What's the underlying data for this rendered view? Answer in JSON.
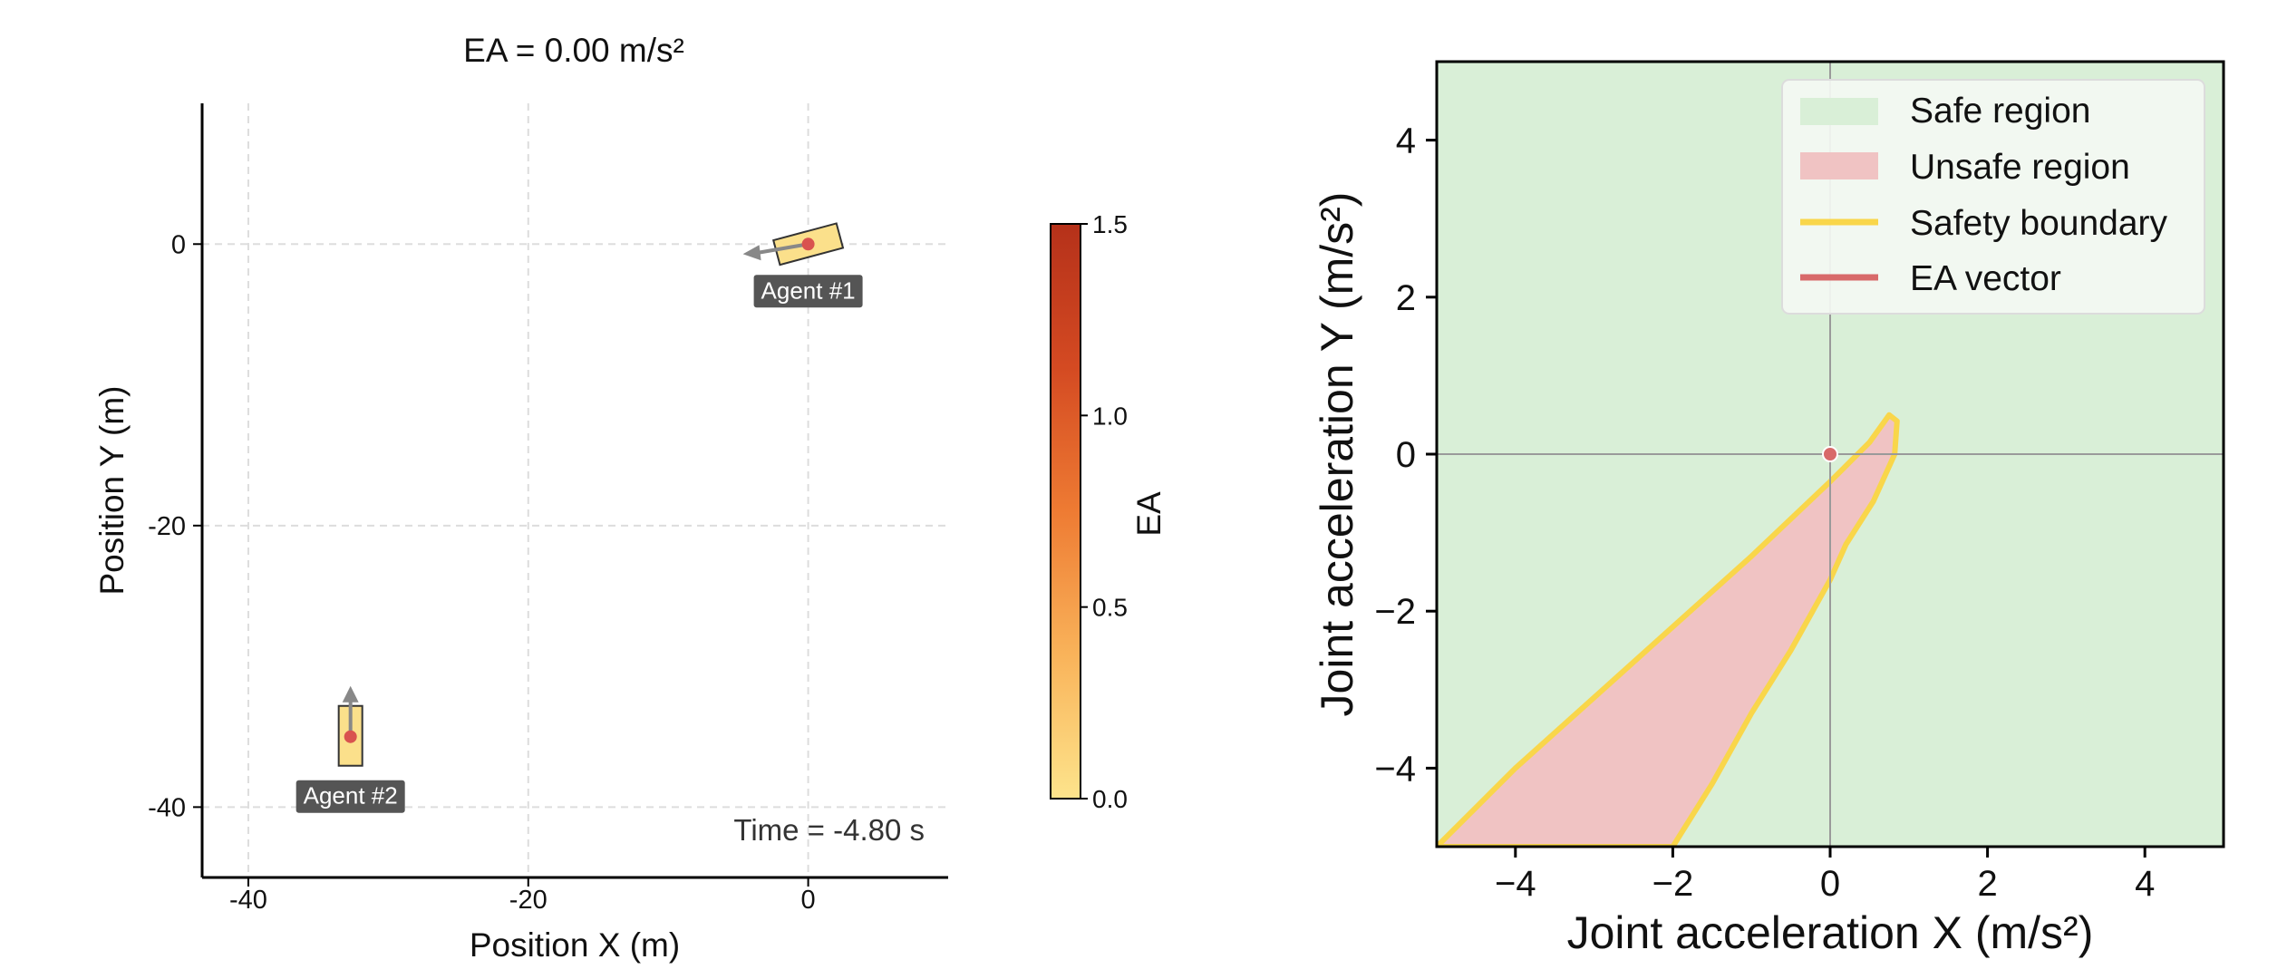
{
  "chart_data": [
    {
      "type": "scatter",
      "title": "EA = 0.00 m/s²",
      "xlabel": "Position X (m)",
      "ylabel": "Position Y (m)",
      "xlim": [
        -43.3,
        10
      ],
      "ylim": [
        -45,
        10
      ],
      "xticks": [
        -40,
        -20,
        0
      ],
      "yticks": [
        0,
        -20,
        -40
      ],
      "grid": true,
      "annotation": "Time = -4.80 s",
      "agents": [
        {
          "label": "Agent #1",
          "x": 0.0,
          "y": 0.0,
          "heading_deg": 195,
          "color": "#fbe08b"
        },
        {
          "label": "Agent #2",
          "x": -32.7,
          "y": -35.0,
          "heading_deg": 90,
          "color": "#fbe08b"
        }
      ],
      "colorbar": {
        "label": "EA",
        "range": [
          0.0,
          1.5
        ],
        "ticks": [
          "1.5",
          "1.0",
          "0.5",
          "0.0"
        ],
        "colors": [
          "#fde48c",
          "#f9b35a",
          "#ee7b33",
          "#d44a22",
          "#b5311a"
        ]
      }
    },
    {
      "type": "area",
      "xlabel": "Joint acceleration X (m/s²)",
      "ylabel": "Joint acceleration Y (m/s²)",
      "xlim": [
        -5,
        5
      ],
      "ylim": [
        -5,
        5
      ],
      "xticks": [
        "−4",
        "−2",
        "0",
        "2",
        "4"
      ],
      "yticks": [
        "4",
        "2",
        "0",
        "−2",
        "−4"
      ],
      "legend_position": "top-right",
      "legend": [
        {
          "label": "Safe region",
          "color": "#d9efd7"
        },
        {
          "label": "Unsafe region",
          "color": "#f0c3c3"
        },
        {
          "label": "Safety boundary",
          "color": "#f9d64a"
        },
        {
          "label": "EA vector",
          "color": "#d86a6a"
        }
      ],
      "ea_vector": {
        "x": 0.0,
        "y": 0.0
      },
      "unsafe_region_boundary": [
        {
          "x": -5.0,
          "y": -5.0
        },
        {
          "x": -4.0,
          "y": -4.0
        },
        {
          "x": -3.0,
          "y": -3.1
        },
        {
          "x": -2.0,
          "y": -2.2
        },
        {
          "x": -1.0,
          "y": -1.3
        },
        {
          "x": 0.0,
          "y": -0.35
        },
        {
          "x": 0.5,
          "y": 0.15
        },
        {
          "x": 0.75,
          "y": 0.5
        },
        {
          "x": 0.85,
          "y": 0.42
        },
        {
          "x": 0.82,
          "y": 0.0
        },
        {
          "x": 0.55,
          "y": -0.6
        },
        {
          "x": 0.2,
          "y": -1.15
        },
        {
          "x": 0.0,
          "y": -1.6
        },
        {
          "x": -0.5,
          "y": -2.5
        },
        {
          "x": -1.0,
          "y": -3.3
        },
        {
          "x": -1.5,
          "y": -4.2
        },
        {
          "x": -2.0,
          "y": -5.0
        }
      ]
    }
  ]
}
